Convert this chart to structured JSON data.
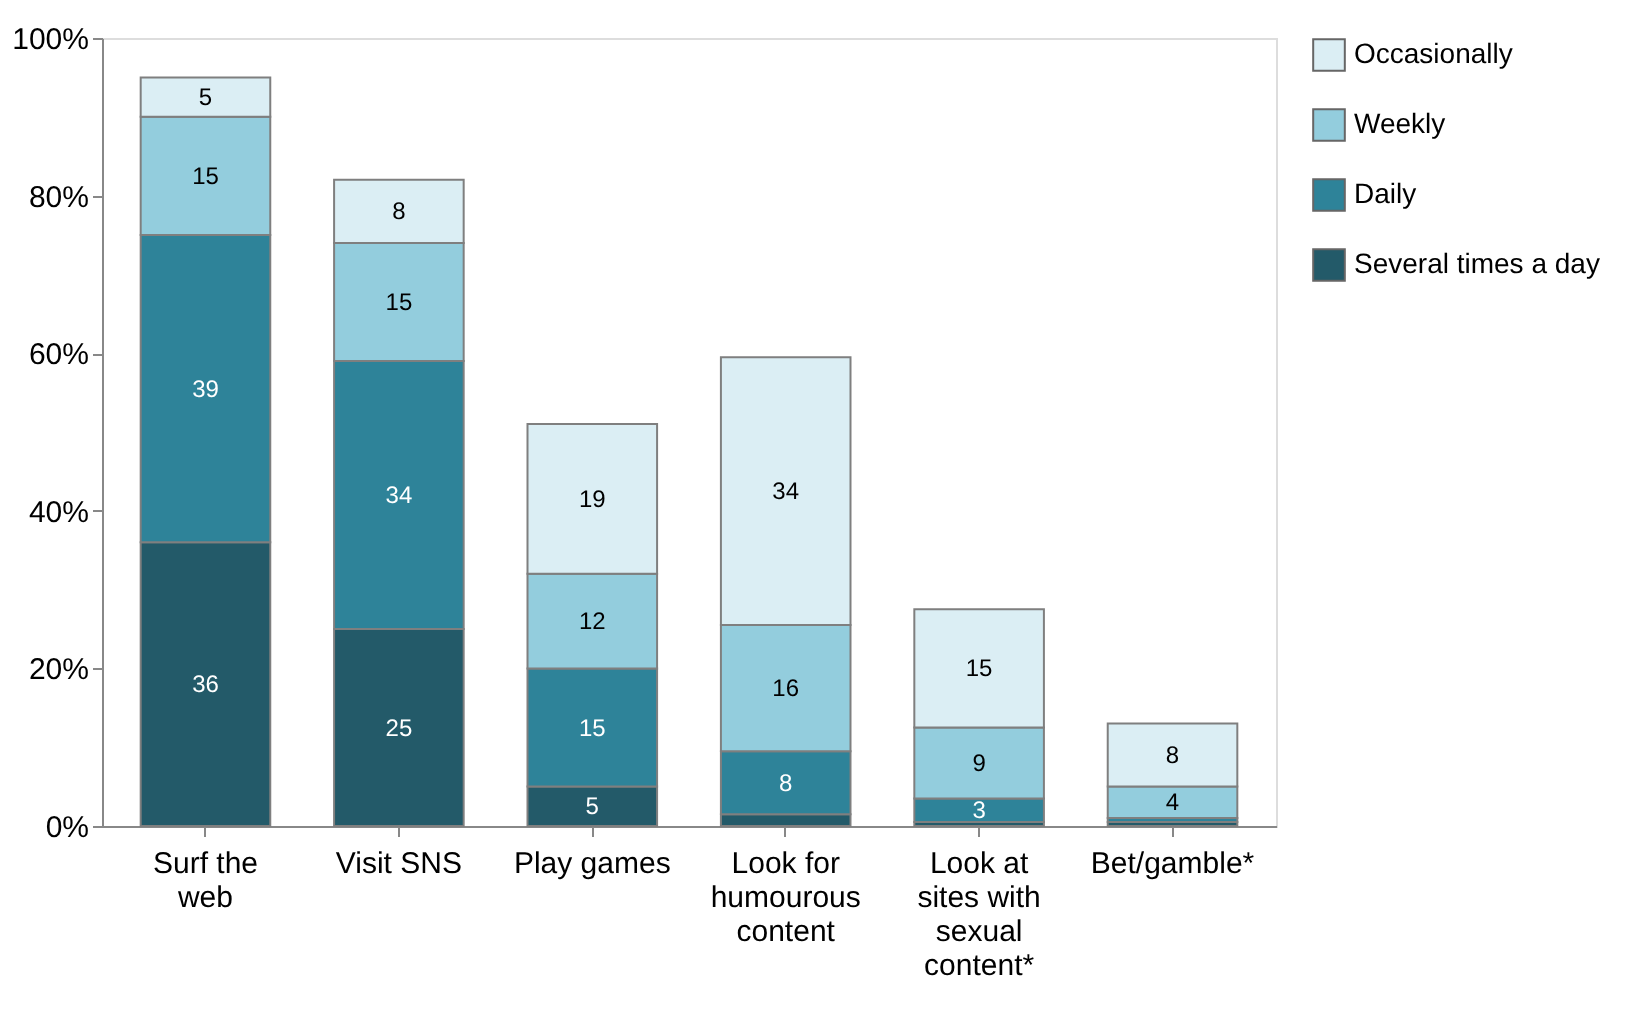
{
  "chart_data": {
    "type": "bar",
    "stacked": true,
    "categories": [
      "Surf the web",
      "Visit SNS",
      "Play games",
      "Look for humourous content",
      "Look at sites with sexual content*",
      "Bet/gamble*"
    ],
    "series": [
      {
        "name": "Several times a day",
        "color": "#235a69",
        "values": [
          36,
          25,
          5,
          1.5,
          0.5,
          0.5
        ],
        "value_labels": [
          "36",
          "25",
          "5",
          null,
          null,
          null
        ]
      },
      {
        "name": "Daily",
        "color": "#2e8399",
        "values": [
          39,
          34,
          15,
          8,
          3,
          0.5
        ],
        "value_labels": [
          "39",
          "34",
          "15",
          "8",
          "3",
          null
        ]
      },
      {
        "name": "Weekly",
        "color": "#93cddd",
        "values": [
          15,
          15,
          12,
          16,
          9,
          4
        ],
        "value_labels": [
          "15",
          "15",
          "12",
          "16",
          "9",
          "4"
        ]
      },
      {
        "name": "Occasionally",
        "color": "#dbeef4",
        "values": [
          5,
          8,
          19,
          34,
          15,
          8
        ],
        "value_labels": [
          "5",
          "8",
          "19",
          "34",
          "15",
          "8"
        ]
      }
    ],
    "ylim": [
      0,
      100
    ],
    "yticks": [
      {
        "value": 0,
        "label": "0%"
      },
      {
        "value": 20,
        "label": "20%"
      },
      {
        "value": 40,
        "label": "40%"
      },
      {
        "value": 60,
        "label": "60%"
      },
      {
        "value": 80,
        "label": "80%"
      },
      {
        "value": 100,
        "label": "100%"
      }
    ],
    "grid": false,
    "legend": "right"
  }
}
